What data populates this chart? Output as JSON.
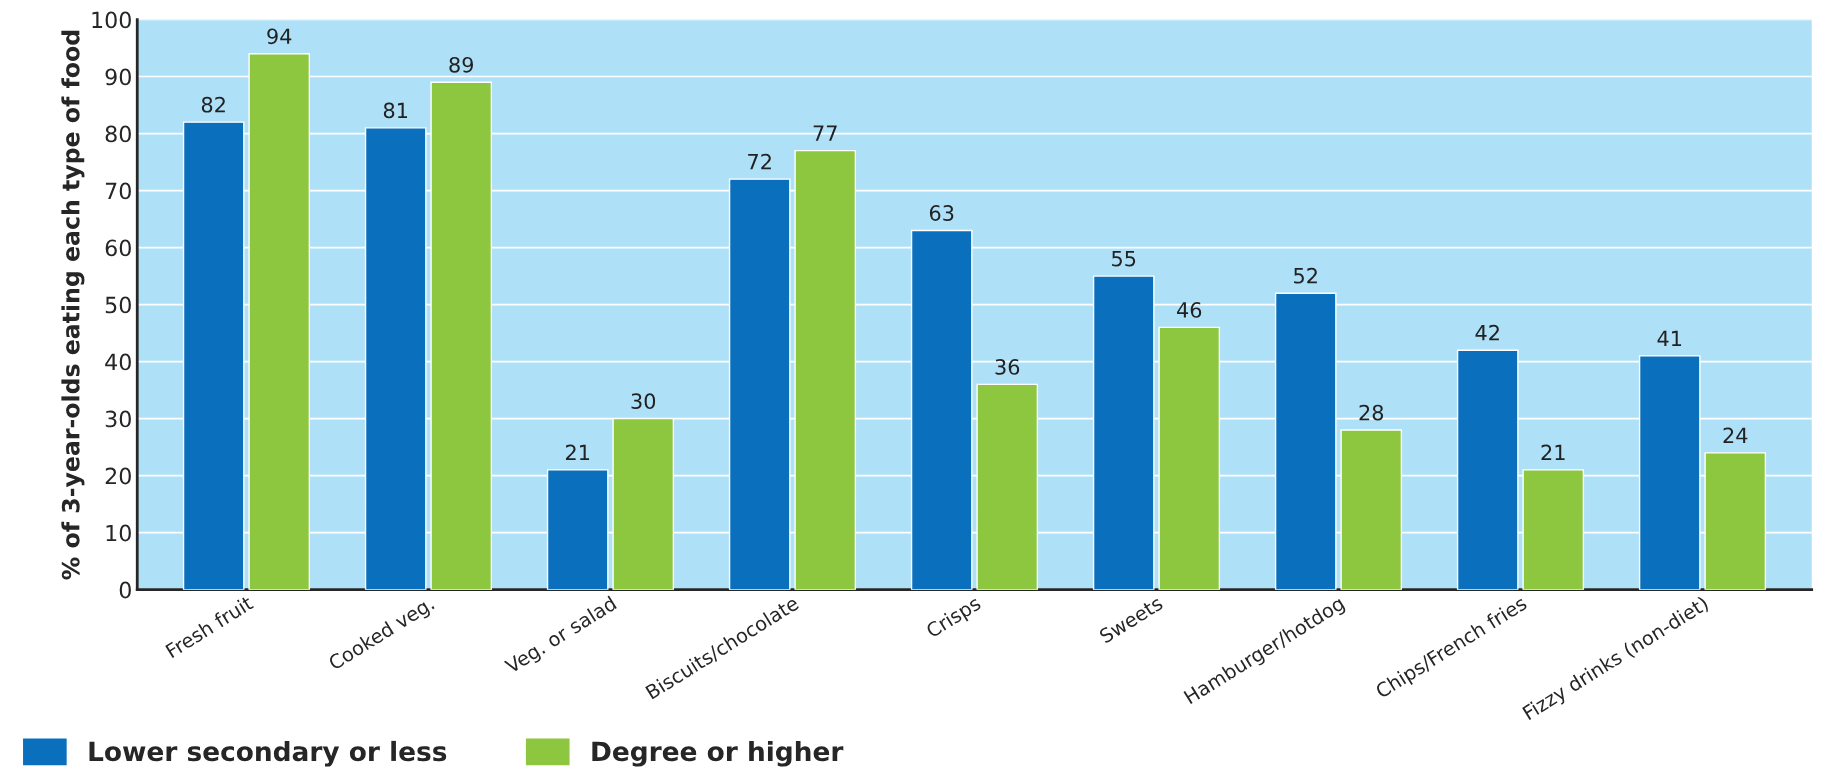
{
  "chart_data": {
    "type": "bar",
    "ylabel": "% of 3-year-olds eating each type of food",
    "categories": [
      "Fresh fruit",
      "Cooked veg.",
      "Veg. or salad",
      "Biscuits/chocolate",
      "Crisps",
      "Sweets",
      "Hamburger/hotdog",
      "Chips/French fries",
      "Fizzy drinks (non-diet)"
    ],
    "series": [
      {
        "name": "Lower secondary or less",
        "color": "#0a6fbd",
        "values": [
          82,
          81,
          21,
          72,
          63,
          55,
          52,
          42,
          41
        ]
      },
      {
        "name": "Degree or higher",
        "color": "#8dc63f",
        "values": [
          94,
          89,
          30,
          77,
          36,
          46,
          28,
          21,
          24
        ]
      }
    ],
    "ylim": [
      0,
      100
    ],
    "yticks": [
      0,
      10,
      20,
      30,
      40,
      50,
      60,
      70,
      80,
      90,
      100
    ],
    "grid": "y",
    "legend": "bottom",
    "data_labels": true
  }
}
